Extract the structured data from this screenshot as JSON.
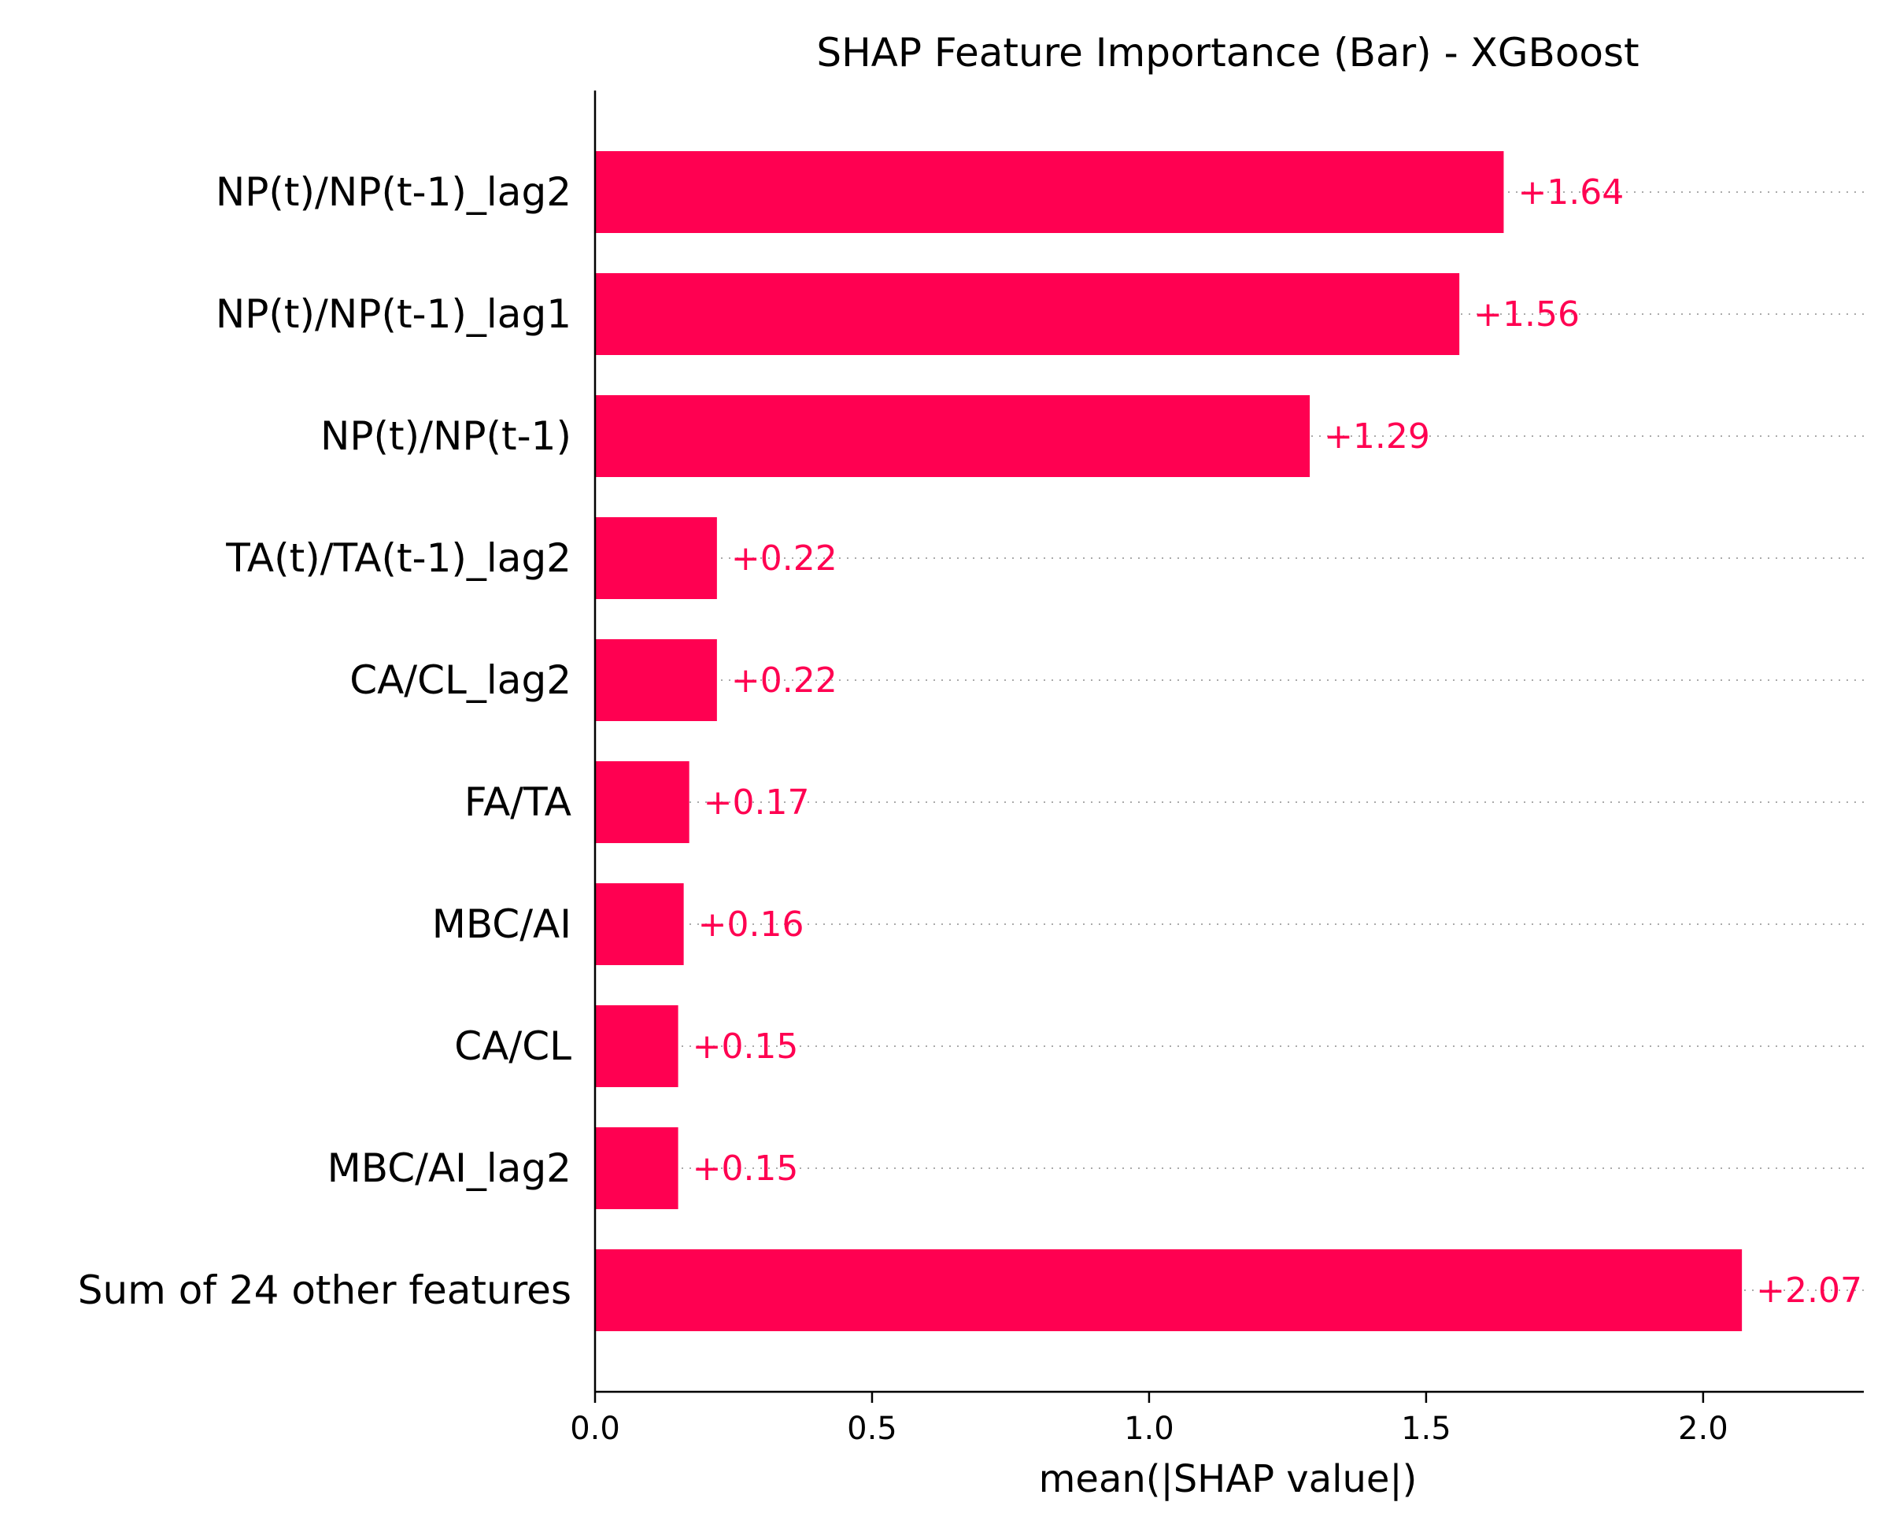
{
  "chart_data": {
    "type": "bar",
    "orientation": "horizontal",
    "title": "SHAP Feature Importance (Bar) - XGBoost",
    "xlabel": "mean(|SHAP value|)",
    "ylabel": "",
    "xlim": [
      0,
      2.29
    ],
    "xticks": [
      0.0,
      0.5,
      1.0,
      1.5,
      2.0
    ],
    "xtick_labels": [
      "0.0",
      "0.5",
      "1.0",
      "1.5",
      "2.0"
    ],
    "grid": "dotted horizontal guide lines per bar",
    "legend": "none",
    "categories": [
      "NP(t)/NP(t-1)_lag2",
      "NP(t)/NP(t-1)_lag1",
      "NP(t)/NP(t-1)",
      "TA(t)/TA(t-1)_lag2",
      "CA/CL_lag2",
      "FA/TA",
      "MBC/AI",
      "CA/CL",
      "MBC/AI_lag2",
      "Sum of 24 other features"
    ],
    "values": [
      1.64,
      1.56,
      1.29,
      0.22,
      0.22,
      0.17,
      0.16,
      0.15,
      0.15,
      2.07
    ],
    "value_labels": [
      "+1.64",
      "+1.56",
      "+1.29",
      "+0.22",
      "+0.22",
      "+0.17",
      "+0.16",
      "+0.15",
      "+0.15",
      "+2.07"
    ],
    "colors": {
      "bar": "#ff0051",
      "label": "#ff0051",
      "axis": "#000000",
      "guide": "#aaaaaa"
    }
  }
}
